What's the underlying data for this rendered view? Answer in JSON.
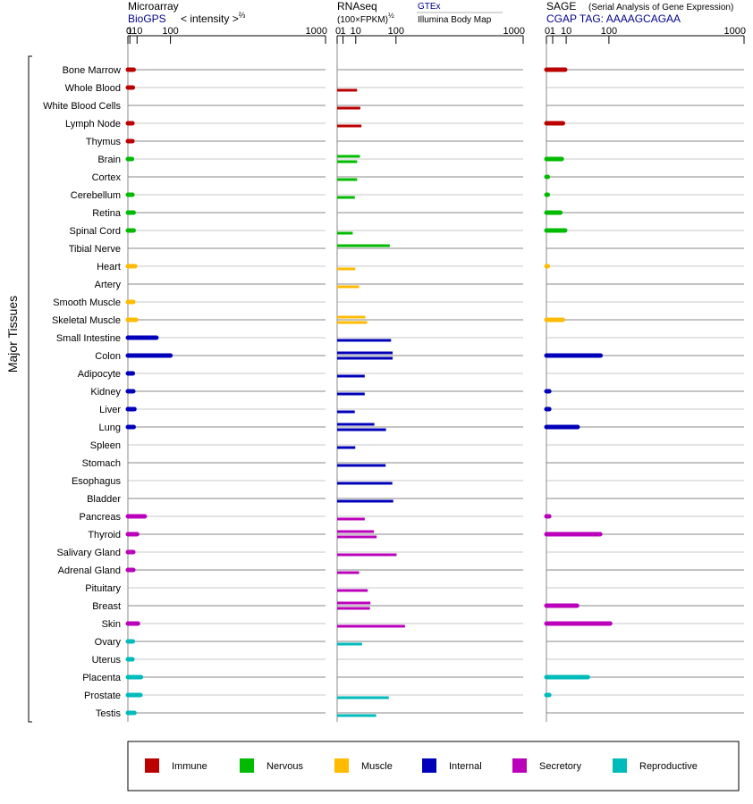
{
  "chart_data": {
    "type": "bar",
    "orientation": "horizontal",
    "y_axis_title": "Major Tissues",
    "categories": [
      "Bone Marrow",
      "Whole Blood",
      "White Blood Cells",
      "Lymph Node",
      "Thymus",
      "Brain",
      "Cortex",
      "Cerebellum",
      "Retina",
      "Spinal Cord",
      "Tibial Nerve",
      "Heart",
      "Artery",
      "Smooth Muscle",
      "Skeletal Muscle",
      "Small Intestine",
      "Colon",
      "Adipocyte",
      "Kidney",
      "Liver",
      "Lung",
      "Spleen",
      "Stomach",
      "Esophagus",
      "Bladder",
      "Pancreas",
      "Thyroid",
      "Salivary Gland",
      "Adrenal Gland",
      "Pituitary",
      "Breast",
      "Skin",
      "Ovary",
      "Uterus",
      "Placenta",
      "Prostate",
      "Testis"
    ],
    "category_groups": [
      "immune",
      "immune",
      "immune",
      "immune",
      "immune",
      "nervous",
      "nervous",
      "nervous",
      "nervous",
      "nervous",
      "nervous",
      "muscle",
      "muscle",
      "muscle",
      "muscle",
      "internal",
      "internal",
      "internal",
      "internal",
      "internal",
      "internal",
      "internal",
      "internal",
      "internal",
      "internal",
      "secretory",
      "secretory",
      "secretory",
      "secretory",
      "secretory",
      "secretory",
      "secretory",
      "reproductive",
      "reproductive",
      "reproductive",
      "reproductive",
      "reproductive"
    ],
    "x_scale": "power 2/3 (panel 1), square root (panels 2, 3)",
    "x_ticks": [
      "0",
      "1",
      "10",
      "100",
      "1000"
    ],
    "x_range": [
      0,
      1000
    ],
    "grid": true,
    "panels": [
      {
        "key": "microarray",
        "title": "Microarray",
        "source": "BioGPS",
        "axis_label": "< intensity >",
        "axis_label_sup": "⅔",
        "values": [
          5,
          4,
          null,
          3.5,
          3.5,
          3,
          null,
          3.5,
          5,
          5,
          null,
          7,
          null,
          4.5,
          8.5,
          55,
          100,
          4,
          4.5,
          6,
          5,
          null,
          null,
          null,
          null,
          25,
          10,
          4.5,
          4.5,
          null,
          null,
          11.5,
          4,
          3.5,
          17,
          16,
          6
        ]
      },
      {
        "key": "rnaseq",
        "title": "RNAseq",
        "axis_label": "(100×FPKM)",
        "axis_label_sup": "½",
        "legend_gtex": "GTEx",
        "legend_ibm": "Illumina Body Map",
        "gtex": [
          null,
          null,
          null,
          null,
          null,
          15,
          null,
          null,
          null,
          null,
          80,
          null,
          null,
          null,
          23,
          null,
          89,
          null,
          null,
          null,
          40,
          null,
          null,
          null,
          null,
          null,
          39,
          null,
          null,
          null,
          32,
          null,
          null,
          null,
          null,
          null,
          null
        ],
        "ibm": [
          null,
          11.5,
          15.5,
          17,
          null,
          11.5,
          11.5,
          9,
          null,
          7,
          null,
          9.5,
          14,
          null,
          26,
          84,
          89,
          22,
          22,
          9,
          69,
          9.5,
          68,
          88,
          91,
          22,
          45,
          102,
          14,
          27,
          31,
          133,
          18,
          null,
          null,
          77,
          44
        ]
      },
      {
        "key": "sage",
        "title": "SAGE",
        "subtitle": "(Serial Analysis of Gene Expression)",
        "tag_line": "CGAP TAG: AAAAGCAGAA",
        "values": [
          9,
          null,
          null,
          7,
          null,
          6,
          0.05,
          0.05,
          5,
          9,
          null,
          0.05,
          null,
          null,
          7,
          null,
          75,
          null,
          0.2,
          0.2,
          25,
          null,
          null,
          null,
          null,
          0.2,
          74,
          null,
          null,
          null,
          24,
          104,
          null,
          null,
          44,
          0.2,
          null
        ]
      }
    ],
    "legend_position": "bottom",
    "legend": [
      {
        "key": "immune",
        "label": "Immune",
        "color": "#bb0000"
      },
      {
        "key": "nervous",
        "label": "Nervous",
        "color": "#00bb00"
      },
      {
        "key": "muscle",
        "label": "Muscle",
        "color": "#ffbb00"
      },
      {
        "key": "internal",
        "label": "Internal",
        "color": "#0000bb"
      },
      {
        "key": "secretory",
        "label": "Secretory",
        "color": "#bb00bb"
      },
      {
        "key": "reproductive",
        "label": "Reproductive",
        "color": "#00bbbb"
      }
    ]
  }
}
